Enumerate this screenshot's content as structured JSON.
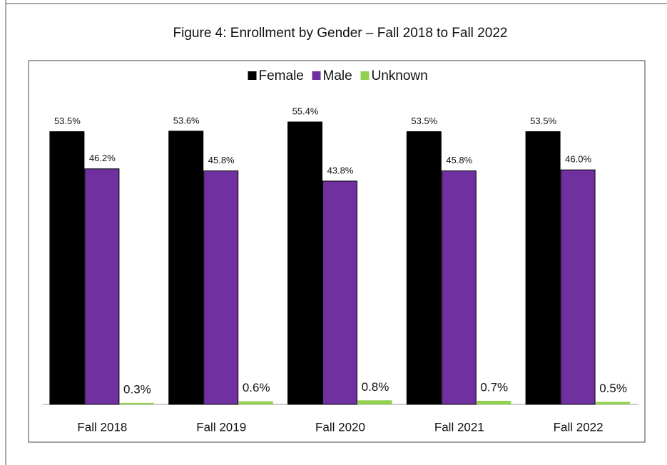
{
  "chart_data": {
    "type": "bar",
    "title": "Figure 4: Enrollment by Gender – Fall 2018 to Fall 2022",
    "categories": [
      "Fall 2018",
      "Fall 2019",
      "Fall 2020",
      "Fall 2021",
      "Fall 2022"
    ],
    "series": [
      {
        "name": "Female",
        "color": "#000000",
        "values": [
          53.5,
          53.6,
          55.4,
          53.5,
          53.5
        ],
        "value_labels": [
          "53.5%",
          "53.6%",
          "55.4%",
          "53.5%",
          "53.5%"
        ]
      },
      {
        "name": "Male",
        "color": "#7030a0",
        "values": [
          46.2,
          45.8,
          43.8,
          45.8,
          46.0
        ],
        "value_labels": [
          "46.2%",
          "45.8%",
          "43.8%",
          "45.8%",
          "46.0%"
        ]
      },
      {
        "name": "Unknown",
        "color": "#92d050",
        "values": [
          0.3,
          0.6,
          0.8,
          0.7,
          0.5
        ],
        "value_labels": [
          "0.3%",
          "0.6%",
          "0.8%",
          "0.7%",
          "0.5%"
        ]
      }
    ],
    "legend": "top"
  }
}
